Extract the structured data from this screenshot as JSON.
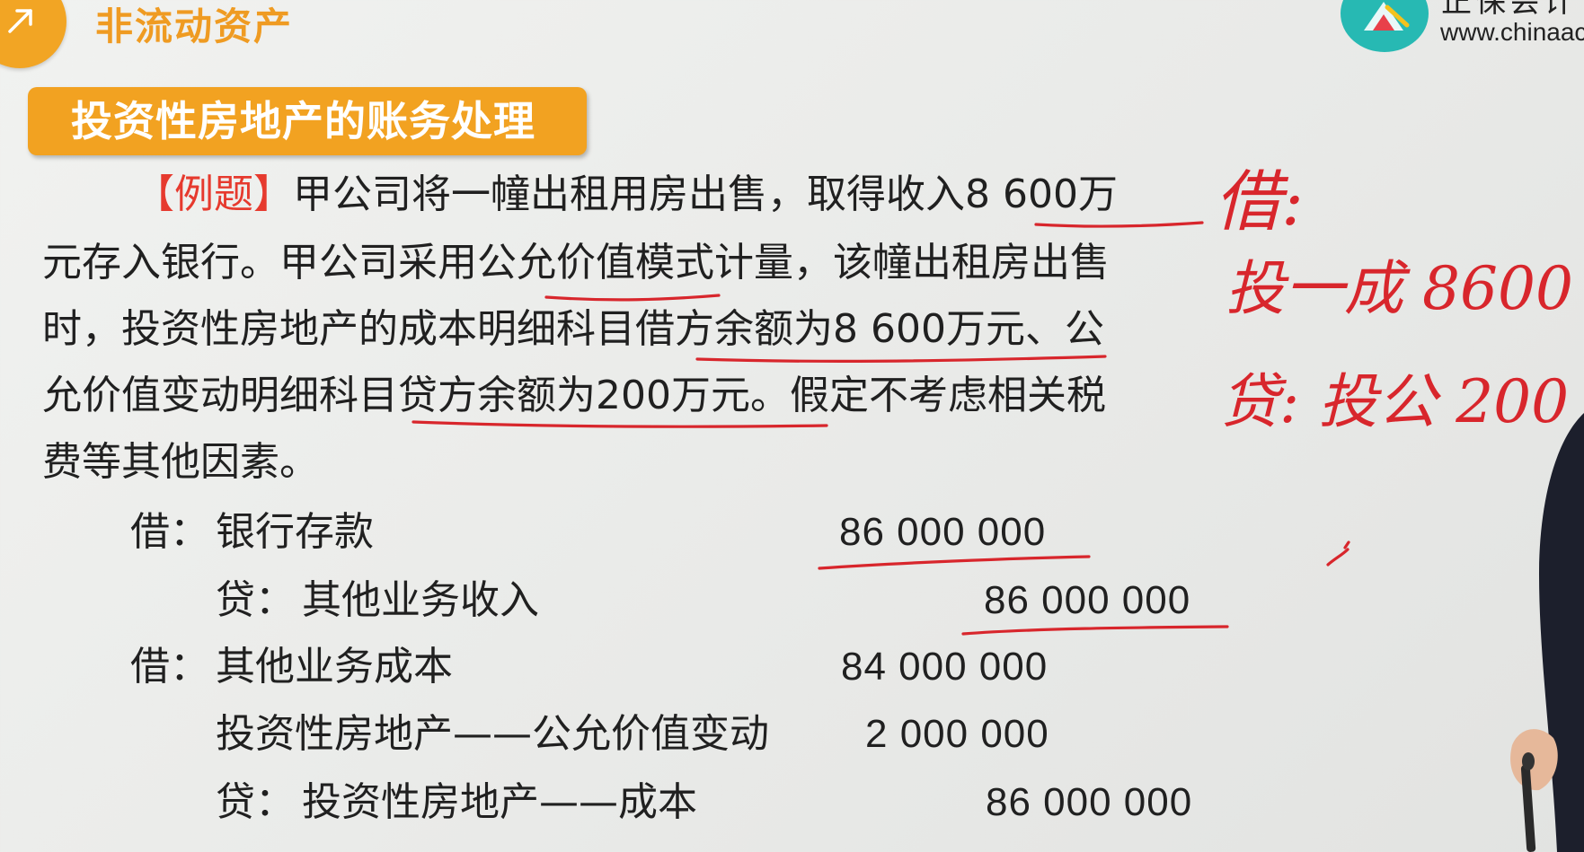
{
  "header": {
    "chapter_title": "非流动资产",
    "brand_partial": "正保会计",
    "url_partial": "www.chinaac"
  },
  "section": {
    "title": "投资性房地产的账务处理"
  },
  "example": {
    "tag": "【例题】",
    "line1": "甲公司将一幢出租用房出售，取得收入8 600万",
    "line2": "元存入银行。甲公司采用公允价值模式计量，该幢出租房出售",
    "line3": "时，投资性房地产的成本明细科目借方余额为8 600万元、公",
    "line4": "允价值变动明细科目贷方余额为200万元。假定不考虑相关税",
    "line5": "费等其他因素。"
  },
  "entries": [
    {
      "prefix": "借：",
      "account": "银行存款",
      "amount": "86 000 000",
      "side": "debit"
    },
    {
      "prefix": "贷：",
      "account": "其他业务收入",
      "amount": "86 000 000",
      "side": "credit"
    },
    {
      "prefix": "借：",
      "account": "其他业务成本",
      "amount": "84 000 000",
      "side": "debit"
    },
    {
      "prefix": "",
      "account": "投资性房地产——公允价值变动",
      "amount": "2 000 000",
      "side": "debit"
    },
    {
      "prefix": "贷：",
      "account": "投资性房地产——成本",
      "amount": "86 000 000",
      "side": "credit"
    }
  ],
  "handwriting": {
    "line1": "借:",
    "line2": "投一成 8600",
    "line3": "贷: 投公 200"
  },
  "colors": {
    "accent_orange": "#f2a221",
    "ink_red": "#d8262c",
    "logo_teal": "#27b9b3",
    "text": "#202020"
  }
}
